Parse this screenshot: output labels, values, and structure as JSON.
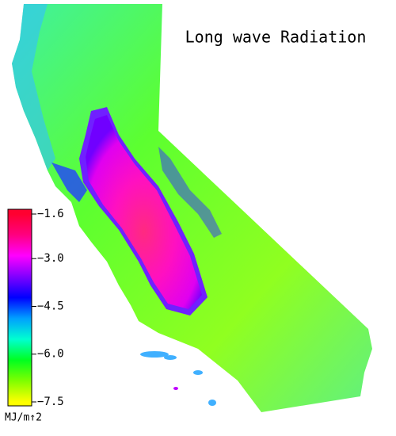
{
  "title": "Long wave Radiation",
  "colorbar": {
    "lim": [
      -7.5,
      -1.6
    ],
    "ticks": [
      {
        "value": -1.6,
        "label": "−1.6"
      },
      {
        "value": -3.0,
        "label": "−3.0"
      },
      {
        "value": -4.5,
        "label": "−4.5"
      },
      {
        "value": -6.0,
        "label": "−6.0"
      },
      {
        "value": -7.5,
        "label": "−7.5"
      }
    ],
    "colors": [
      "#ffff00",
      "#7fff00",
      "#00ff20",
      "#00ffd0",
      "#00a0ff",
      "#0000ff",
      "#8000ff",
      "#ff00ff",
      "#ff0080",
      "#ff0030"
    ],
    "unit": "MJ/m↑2"
  }
}
